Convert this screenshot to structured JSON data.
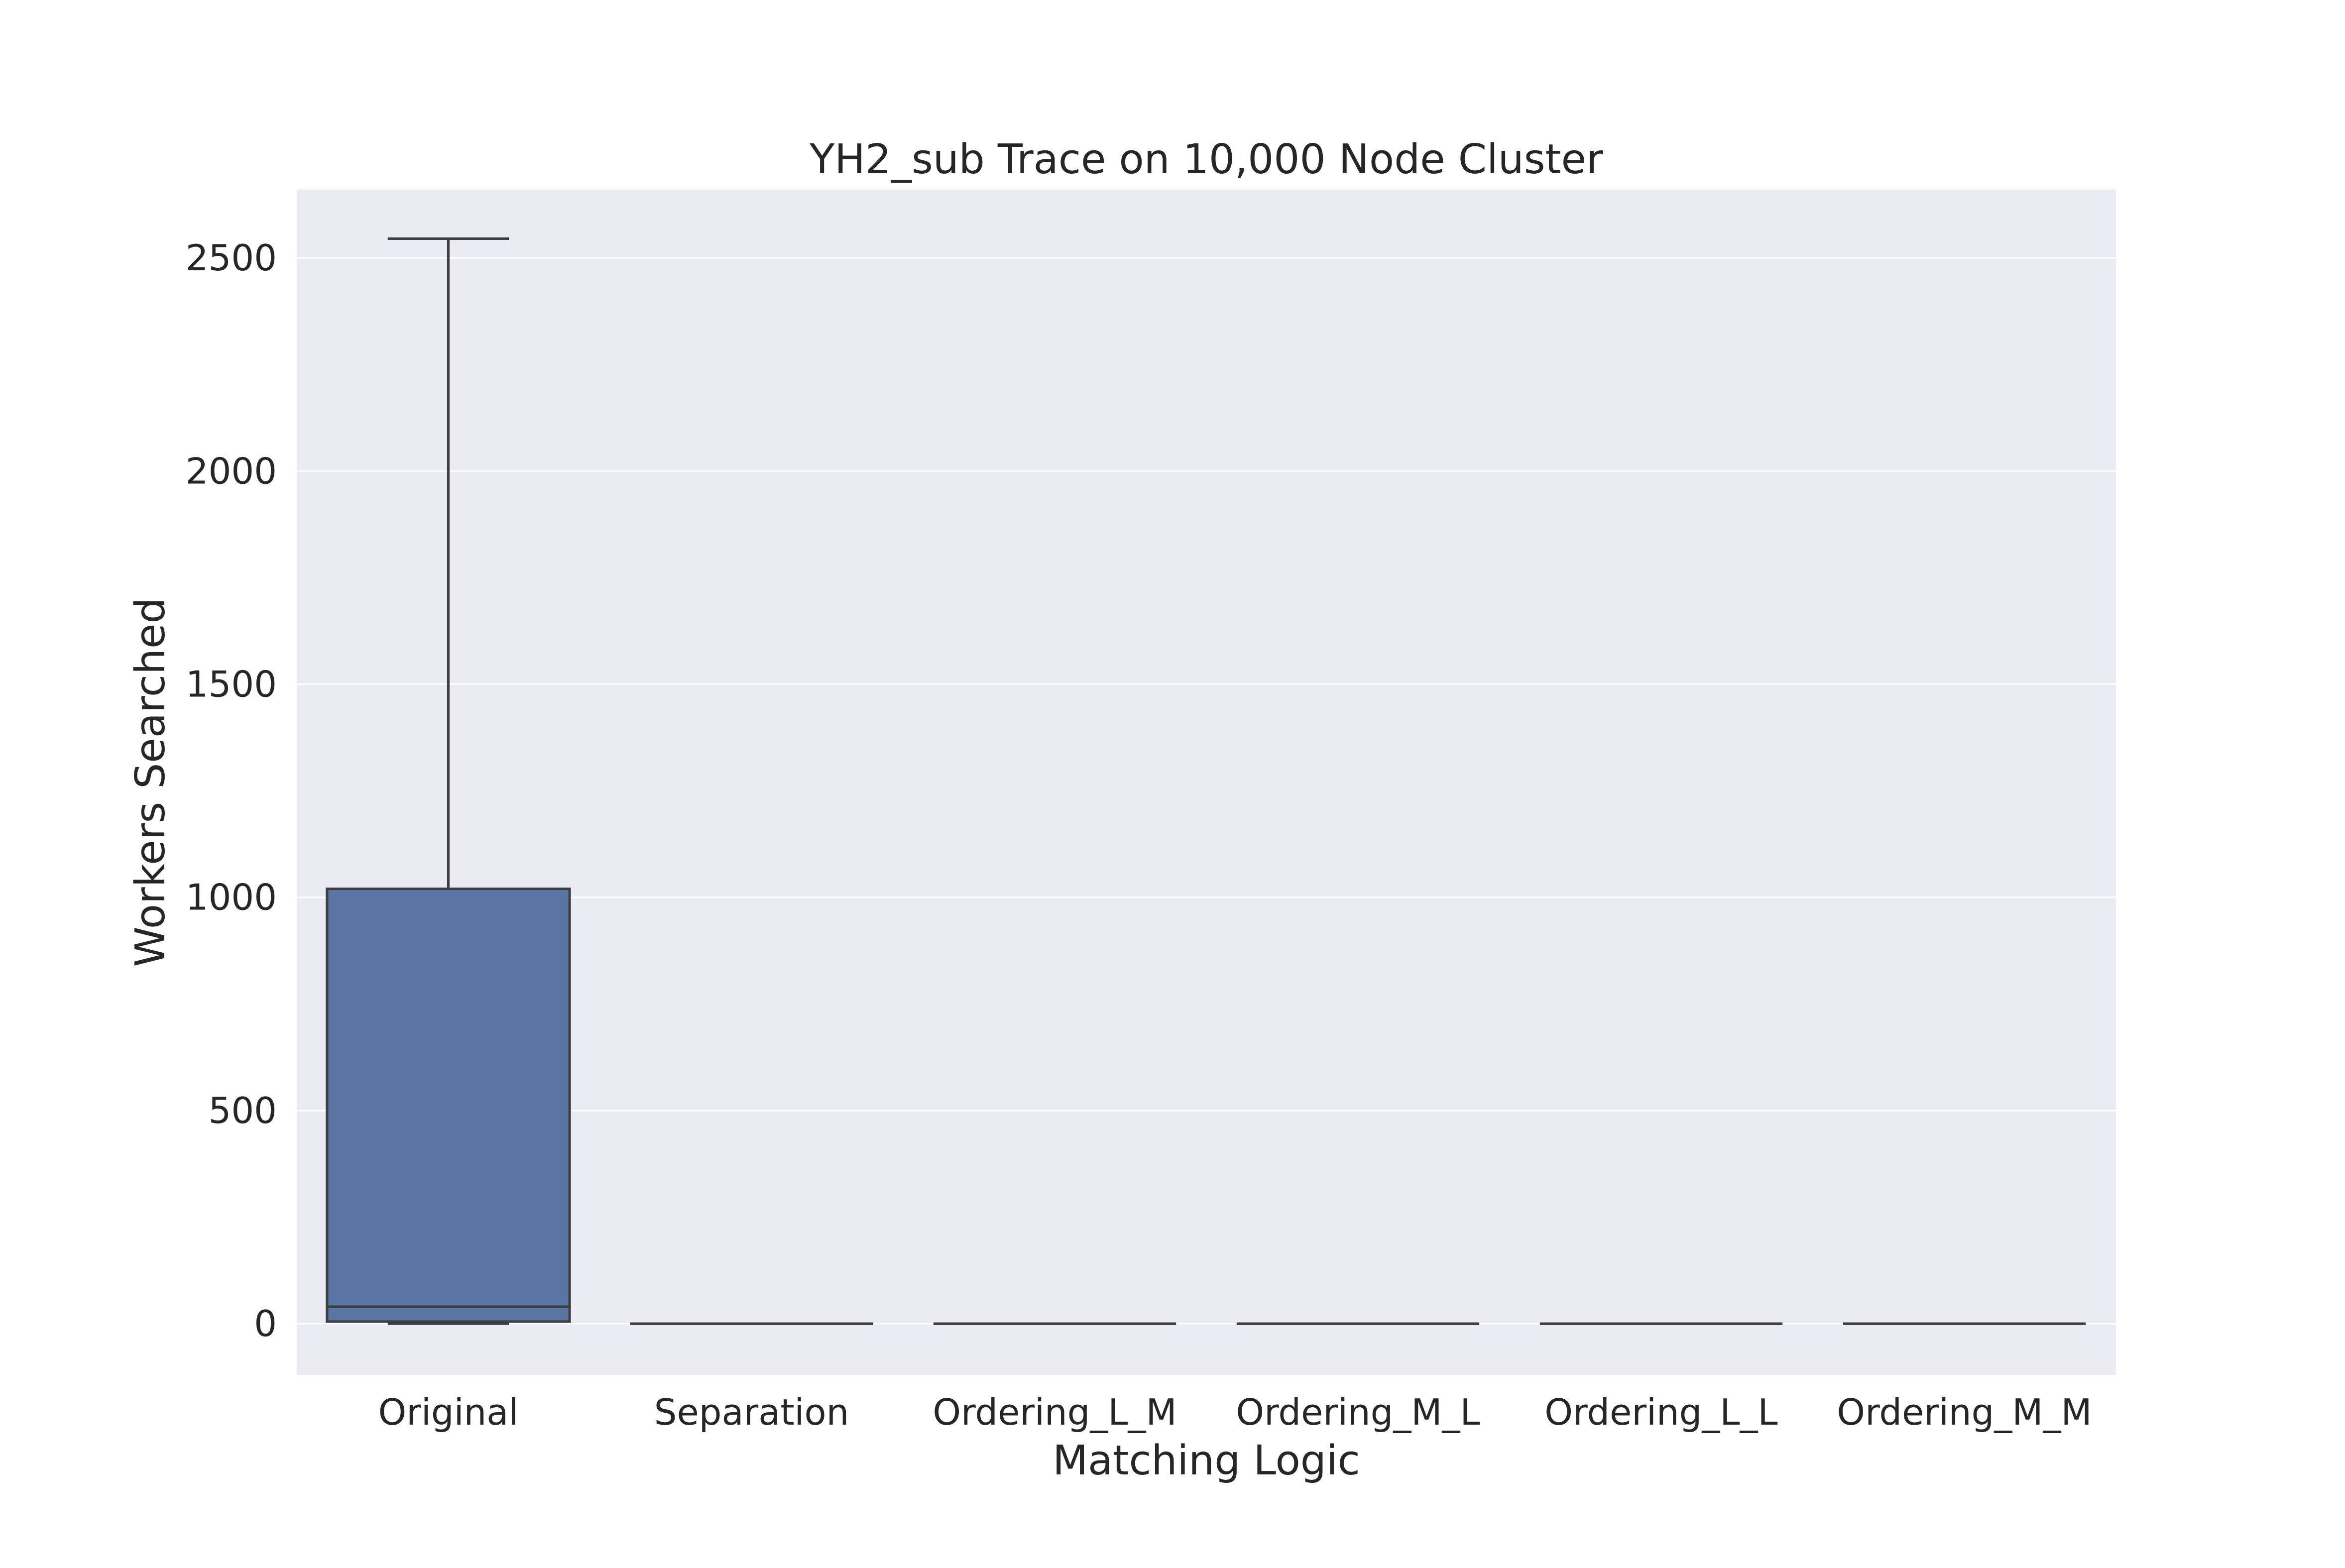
{
  "chart_data": {
    "type": "box",
    "title": "YH2_sub Trace on 10,000 Node Cluster",
    "xlabel": "Matching Logic",
    "ylabel": "Workers Searched",
    "ylim": [
      -120,
      2660
    ],
    "yticks": [
      0,
      500,
      1000,
      1500,
      2000,
      2500
    ],
    "grid": true,
    "legend": "none",
    "colors": {
      "background": "#eaeaf2",
      "grid": "#ffffff",
      "box_fill": "#5975a4",
      "box_edge": "#3d3d3d",
      "text": "#262626"
    },
    "categories": [
      "Original",
      "Separation",
      "Ordering_L_M",
      "Ordering_M_L",
      "Ordering_L_L",
      "Ordering_M_M"
    ],
    "boxes": [
      {
        "category": "Original",
        "whislo": 0,
        "q1": 5,
        "median": 40,
        "q3": 1020,
        "whishi": 2545
      },
      {
        "category": "Separation",
        "whislo": 0,
        "q1": 0,
        "median": 0,
        "q3": 0,
        "whishi": 0
      },
      {
        "category": "Ordering_L_M",
        "whislo": 0,
        "q1": 0,
        "median": 0,
        "q3": 0,
        "whishi": 0
      },
      {
        "category": "Ordering_M_L",
        "whislo": 0,
        "q1": 0,
        "median": 0,
        "q3": 0,
        "whishi": 0
      },
      {
        "category": "Ordering_L_L",
        "whislo": 0,
        "q1": 0,
        "median": 0,
        "q3": 0,
        "whishi": 0
      },
      {
        "category": "Ordering_M_M",
        "whislo": 0,
        "q1": 0,
        "median": 0,
        "q3": 0,
        "whishi": 0
      }
    ]
  }
}
